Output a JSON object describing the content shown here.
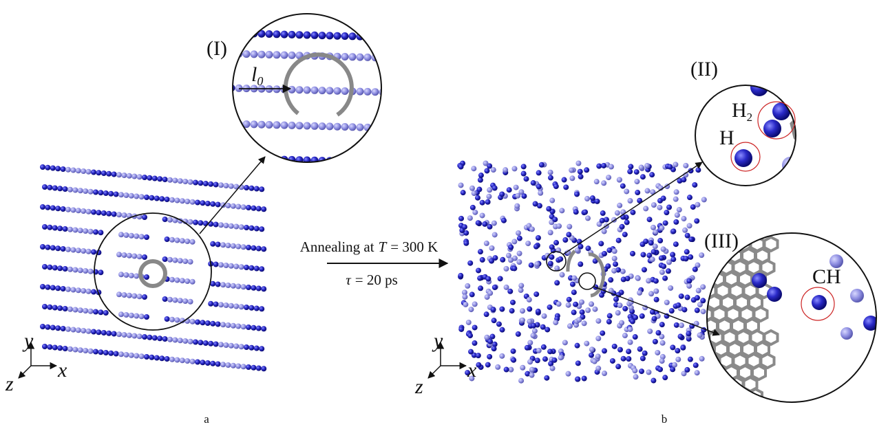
{
  "panel_a": {
    "label": "a",
    "inset": {
      "label": "(I)",
      "symbol": "l",
      "subscript": "0"
    },
    "axes": {
      "y": "y",
      "x": "x",
      "z": "z"
    }
  },
  "transition": {
    "line1_prefix": "Annealing at",
    "line1_symbol": "T",
    "line1_suffix": "= 300 K",
    "line2_symbol": "τ",
    "line2_suffix": "= 20 ps"
  },
  "panel_b": {
    "label": "b",
    "inset_2": {
      "label": "(II)",
      "h2": "H",
      "h2_subscript": "2",
      "h": "H"
    },
    "inset_3": {
      "label": "(III)",
      "ch": "CH"
    },
    "axes": {
      "y": "y",
      "x": "x",
      "z": "z"
    }
  }
}
